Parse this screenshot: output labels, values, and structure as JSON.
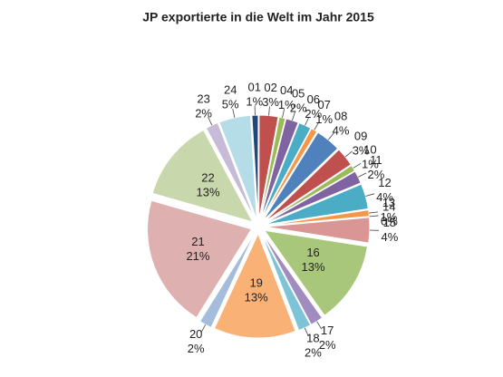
{
  "chart_data": {
    "type": "pie",
    "title": "JP exportierte in die Welt im Jahr 2015",
    "categories": [
      "01",
      "02",
      "04",
      "05",
      "06",
      "07",
      "08",
      "09",
      "10",
      "11",
      "12",
      "13",
      "14",
      "15",
      "16",
      "17",
      "18",
      "19",
      "20",
      "21",
      "22",
      "23",
      "24"
    ],
    "values": [
      1,
      3,
      1,
      2,
      2,
      1,
      4,
      3,
      1,
      2,
      4,
      1,
      0,
      4,
      13,
      2,
      2,
      13,
      2,
      21,
      13,
      2,
      5
    ],
    "value_labels": [
      "1%",
      "3%",
      "1%",
      "2%",
      "2%",
      "1%",
      "4%",
      "3%",
      "1%",
      "2%",
      "4%",
      "1%",
      "0%",
      "4%",
      "13%",
      "2%",
      "2%",
      "13%",
      "2%",
      "21%",
      "13%",
      "2%",
      "5%"
    ],
    "colors": [
      "#1f497d",
      "#c0504d",
      "#9bbb59",
      "#8064a2",
      "#4bacc6",
      "#f79646",
      "#4f81bd",
      "#c0504d",
      "#9bbb59",
      "#8064a2",
      "#4bacc6",
      "#f79646",
      "#4f81bd",
      "#d99694",
      "#a9c77a",
      "#a08cbf",
      "#7dc4d6",
      "#f9b176",
      "#a6bcdc",
      "#deb0af",
      "#c8d8ac",
      "#c6bcd7",
      "#b5dde8"
    ]
  }
}
